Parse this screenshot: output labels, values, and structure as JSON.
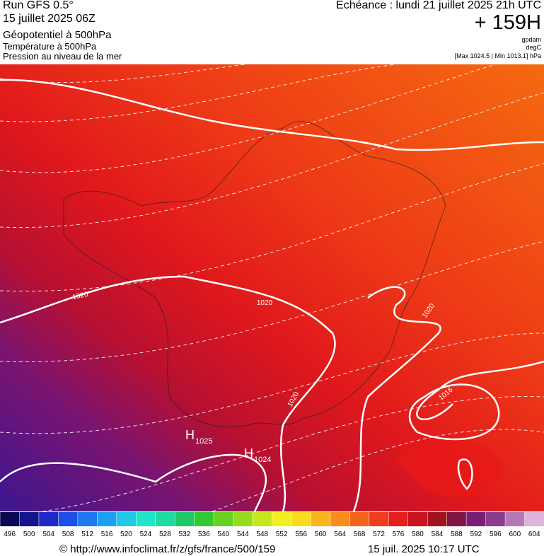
{
  "header": {
    "run": "Run GFS 0.5°",
    "date": "15 juillet 2025 06Z",
    "field1": "Géopotentiel à 500hPa",
    "field2": "Température à 500hPa",
    "field3": "Pression au niveau de la mer",
    "valid": "Echéance : lundi 21 juillet 2025 21h UTC",
    "lead": "+ 159H",
    "unit1": "gpdam",
    "unit2": "degC",
    "range": "[Max 1024.5 | Min 1013.1] hPa"
  },
  "map": {
    "isobar_labels": [
      "1020",
      "1020",
      "1020",
      "1020",
      "1016"
    ],
    "highs": [
      {
        "symbol": "H",
        "value": "1025"
      },
      {
        "symbol": "H",
        "value": "1024"
      }
    ]
  },
  "colorbar": {
    "labels": [
      496,
      500,
      504,
      508,
      512,
      516,
      520,
      524,
      528,
      532,
      536,
      540,
      544,
      548,
      552,
      556,
      560,
      564,
      568,
      572,
      576,
      580,
      584,
      588,
      592,
      596,
      600,
      604
    ],
    "colors": [
      "#0a0a50",
      "#14148c",
      "#1e28c8",
      "#1e50e6",
      "#1e78f0",
      "#1ea0f0",
      "#1ec8e6",
      "#1ee6c8",
      "#1edca0",
      "#1ec864",
      "#32c832",
      "#64d21e",
      "#96dc1e",
      "#c8e61e",
      "#f0f01e",
      "#fadc1e",
      "#fab41e",
      "#fa8c1e",
      "#f5641e",
      "#f03c1e",
      "#e61e1e",
      "#c8141e",
      "#a0141e",
      "#821446",
      "#781e78",
      "#8c3c8c",
      "#b478b4",
      "#dcb4dc"
    ]
  },
  "footer": {
    "url": "© http://www.infoclimat.fr/z/gfs/france/500/159",
    "stamp": "15 juil. 2025 10:17 UTC"
  }
}
